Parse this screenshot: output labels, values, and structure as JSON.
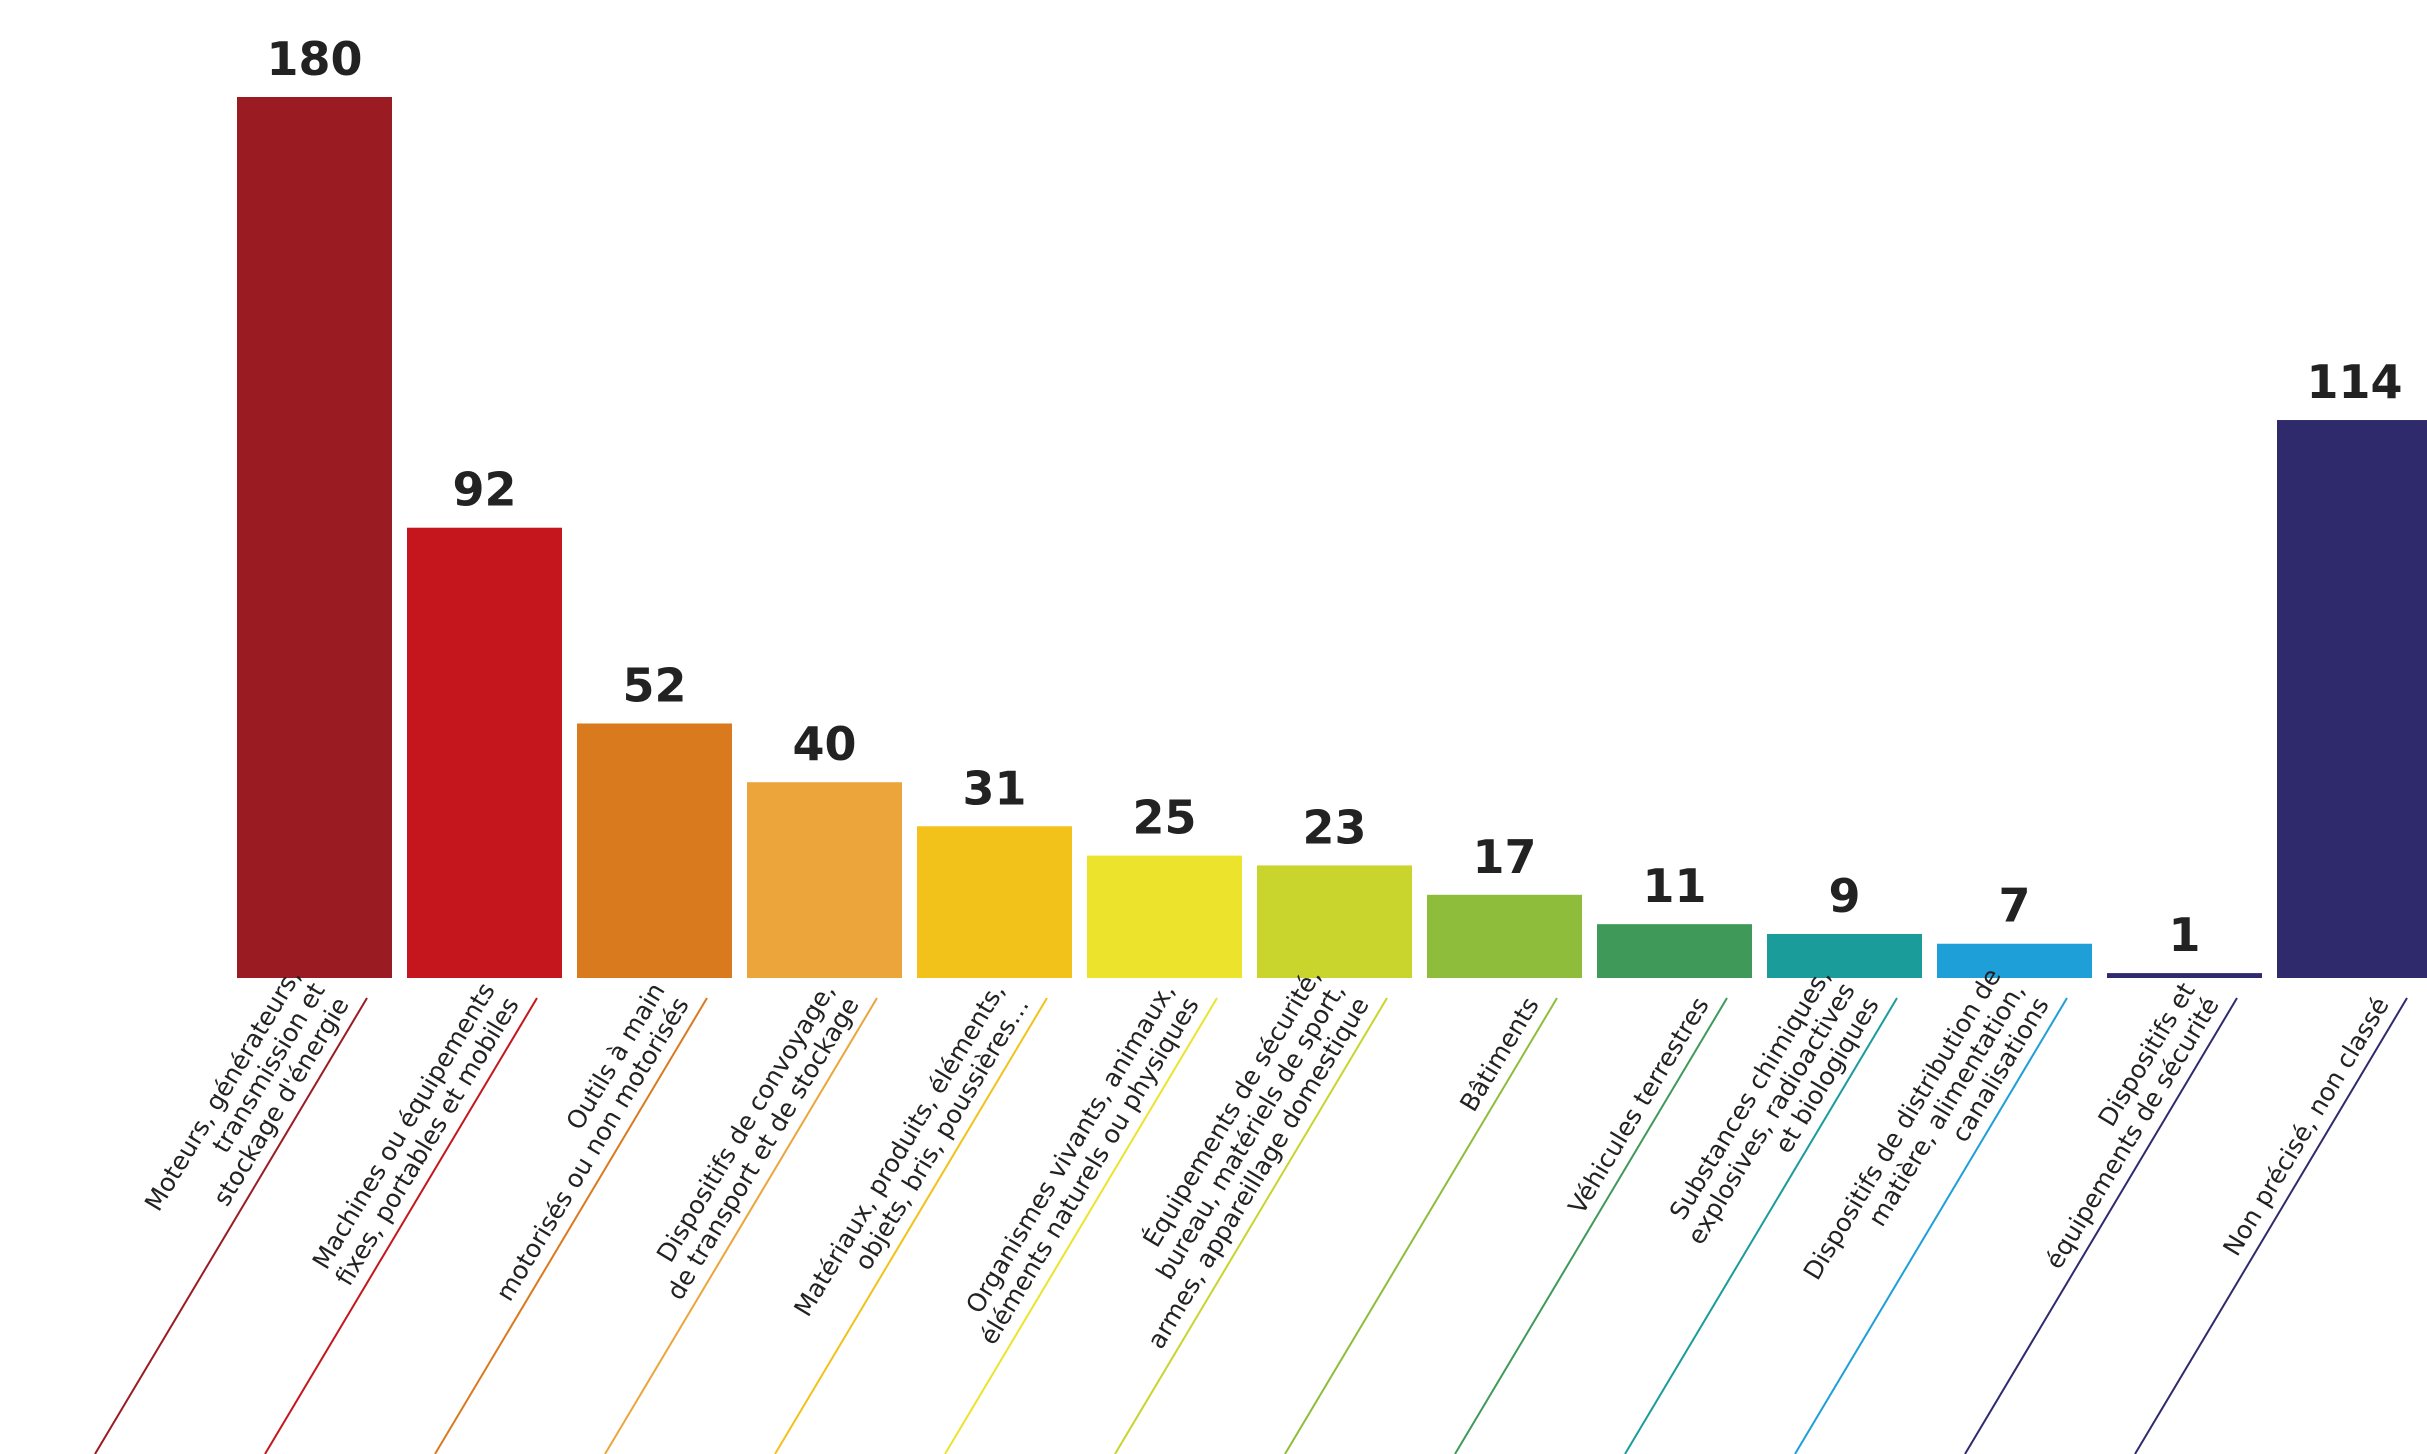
{
  "chart_data": {
    "type": "bar",
    "categories": [
      "Moteurs, générateurs,\ntransmission et\nstockage d'énergie",
      "Machines ou équipements\nfixes, portables et mobiles",
      "Outils à main\nmotorisés ou non motorisés",
      "Dispositifs de convoyage,\nde transport et de stockage",
      "Matériaux, produits, éléments,\nobjets, bris, poussières…",
      "Organismes vivants, animaux,\néléments naturels ou physiques",
      "Équipements de sécurité,\nbureau, matériels de sport,\narmes, appareillage domestique",
      "Bâtiments",
      "Véhicules terrestres",
      "Substances chimiques,\nexplosives, radioactives\net biologiques",
      "Dispositifs de distribution de\nmatière, alimentation,\ncanalisations",
      "Dispositifs et\néquipements de sécurité",
      "Non précisé, non classé"
    ],
    "values": [
      180,
      92,
      52,
      40,
      31,
      25,
      23,
      17,
      11,
      9,
      7,
      1,
      114
    ],
    "colors": [
      "#9b1b22",
      "#c4161c",
      "#d97a1f",
      "#eba53a",
      "#f2c21a",
      "#ece42c",
      "#c9d42d",
      "#8dbd3b",
      "#3f9a5a",
      "#1a9c9a",
      "#1e9fd8",
      "#2e2a6e",
      "#2f2a6b"
    ]
  }
}
